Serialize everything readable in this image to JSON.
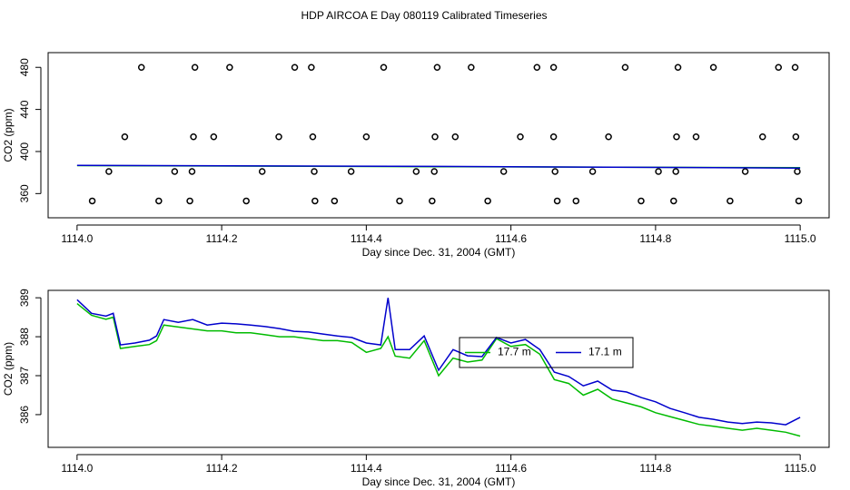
{
  "title": "HDP AIRCOA E  Day 080119  Calibrated Timeseries",
  "chart_data": [
    {
      "type": "scatter",
      "ylabel": "CO2 (ppm)",
      "xlabel": "Day since Dec. 31, 2004 (GMT)",
      "xlim": [
        1113.96,
        1115.04
      ],
      "ylim": [
        337,
        494
      ],
      "xticks": [
        {
          "value": 1114.0,
          "label": "1114.0"
        },
        {
          "value": 1114.2,
          "label": "1114.2"
        },
        {
          "value": 1114.4,
          "label": "1114.4"
        },
        {
          "value": 1114.6,
          "label": "1114.6"
        },
        {
          "value": 1114.8,
          "label": "1114.8"
        },
        {
          "value": 1115.0,
          "label": "1115.0"
        }
      ],
      "yticks": [
        360,
        400,
        440,
        480
      ],
      "series": [
        {
          "style": "points",
          "color": "#000000",
          "x": [
            1114.089,
            1114.163,
            1114.211,
            1114.301,
            1114.324,
            1114.424,
            1114.498,
            1114.545,
            1114.636,
            1114.659,
            1114.758,
            1114.831,
            1114.88,
            1114.97,
            1114.993,
            1114.066,
            1114.161,
            1114.189,
            1114.279,
            1114.326,
            1114.4,
            1114.495,
            1114.523,
            1114.613,
            1114.659,
            1114.735,
            1114.829,
            1114.856,
            1114.948,
            1114.994,
            1114.044,
            1114.135,
            1114.159,
            1114.256,
            1114.328,
            1114.379,
            1114.469,
            1114.494,
            1114.59,
            1114.661,
            1114.713,
            1114.804,
            1114.828,
            1114.924,
            1114.996,
            1114.021,
            1114.113,
            1114.156,
            1114.234,
            1114.329,
            1114.356,
            1114.446,
            1114.491,
            1114.568,
            1114.664,
            1114.69,
            1114.78,
            1114.825,
            1114.903,
            1114.998
          ],
          "values": [
            480,
            480,
            480,
            480,
            480,
            480,
            480,
            480,
            480,
            480,
            480,
            480,
            480,
            480,
            480,
            414,
            414,
            414,
            414,
            414,
            414,
            414,
            414,
            414,
            414,
            414,
            414,
            414,
            414,
            414,
            381,
            381,
            381,
            381,
            381,
            381,
            381,
            381,
            381,
            381,
            381,
            381,
            381,
            381,
            381,
            353,
            353,
            353,
            353,
            353,
            353,
            353,
            353,
            353,
            353,
            353,
            353,
            353,
            353,
            353
          ]
        },
        {
          "style": "line",
          "color": "#00bb00",
          "x": [
            1114.0,
            1114.5,
            1115.0
          ],
          "values": [
            386.6,
            385.6,
            384.6
          ]
        },
        {
          "style": "line",
          "color": "#0000cc",
          "x": [
            1114.0,
            1114.5,
            1115.0
          ],
          "values": [
            386.9,
            385.8,
            384.3
          ]
        }
      ]
    },
    {
      "type": "line",
      "ylabel": "CO2 (ppm)",
      "xlabel": "Day since Dec. 31, 2004 (GMT)",
      "xlim": [
        1113.96,
        1115.04
      ],
      "ylim": [
        385.16,
        389.19
      ],
      "xticks": [
        {
          "value": 1114.0,
          "label": "1114.0"
        },
        {
          "value": 1114.2,
          "label": "1114.2"
        },
        {
          "value": 1114.4,
          "label": "1114.4"
        },
        {
          "value": 1114.6,
          "label": "1114.6"
        },
        {
          "value": 1114.8,
          "label": "1114.8"
        },
        {
          "value": 1115.0,
          "label": "1115.0"
        }
      ],
      "yticks": [
        386,
        387,
        388,
        389
      ],
      "legend": "center",
      "series": [
        {
          "name": "17.7 m",
          "style": "line",
          "color": "#00bb00",
          "x": [
            1114.0,
            1114.02,
            1114.04,
            1114.05,
            1114.06,
            1114.08,
            1114.1,
            1114.11,
            1114.12,
            1114.14,
            1114.16,
            1114.18,
            1114.2,
            1114.22,
            1114.24,
            1114.26,
            1114.28,
            1114.3,
            1114.32,
            1114.34,
            1114.36,
            1114.38,
            1114.4,
            1114.42,
            1114.43,
            1114.44,
            1114.46,
            1114.48,
            1114.5,
            1114.52,
            1114.54,
            1114.56,
            1114.58,
            1114.6,
            1114.62,
            1114.64,
            1114.66,
            1114.68,
            1114.7,
            1114.72,
            1114.74,
            1114.76,
            1114.78,
            1114.8,
            1114.82,
            1114.84,
            1114.86,
            1114.88,
            1114.9,
            1114.92,
            1114.94,
            1114.96,
            1114.98,
            1115.0
          ],
          "values": [
            388.85,
            388.55,
            388.45,
            388.5,
            387.7,
            387.75,
            387.8,
            387.9,
            388.3,
            388.25,
            388.2,
            388.15,
            388.15,
            388.1,
            388.1,
            388.05,
            388.0,
            388.0,
            387.95,
            387.9,
            387.9,
            387.85,
            387.6,
            387.7,
            388.0,
            387.5,
            387.45,
            387.9,
            387.0,
            387.45,
            387.35,
            387.4,
            387.95,
            387.75,
            387.8,
            387.55,
            386.9,
            386.8,
            386.5,
            386.65,
            386.4,
            386.3,
            386.2,
            386.05,
            385.95,
            385.85,
            385.75,
            385.7,
            385.65,
            385.6,
            385.65,
            385.6,
            385.55,
            385.45
          ]
        },
        {
          "name": "17.1 m",
          "style": "line",
          "color": "#0000cc",
          "x": [
            1114.0,
            1114.02,
            1114.04,
            1114.05,
            1114.06,
            1114.08,
            1114.1,
            1114.11,
            1114.12,
            1114.14,
            1114.16,
            1114.18,
            1114.2,
            1114.22,
            1114.24,
            1114.26,
            1114.28,
            1114.3,
            1114.32,
            1114.34,
            1114.36,
            1114.38,
            1114.4,
            1114.42,
            1114.43,
            1114.44,
            1114.46,
            1114.48,
            1114.5,
            1114.52,
            1114.54,
            1114.56,
            1114.58,
            1114.6,
            1114.62,
            1114.64,
            1114.66,
            1114.68,
            1114.7,
            1114.72,
            1114.74,
            1114.76,
            1114.78,
            1114.8,
            1114.82,
            1114.84,
            1114.86,
            1114.88,
            1114.9,
            1114.92,
            1114.94,
            1114.96,
            1114.98,
            1115.0
          ],
          "values": [
            388.95,
            388.6,
            388.53,
            388.6,
            387.79,
            387.84,
            387.91,
            388.02,
            388.44,
            388.37,
            388.44,
            388.3,
            388.35,
            388.33,
            388.3,
            388.26,
            388.21,
            388.14,
            388.12,
            388.07,
            388.02,
            387.98,
            387.84,
            387.79,
            389.0,
            387.67,
            387.67,
            388.02,
            387.14,
            387.67,
            387.51,
            387.49,
            387.98,
            387.84,
            387.93,
            387.67,
            387.09,
            386.98,
            386.74,
            386.86,
            386.63,
            386.58,
            386.44,
            386.33,
            386.16,
            386.05,
            385.93,
            385.88,
            385.81,
            385.77,
            385.81,
            385.79,
            385.74,
            385.93
          ]
        }
      ]
    }
  ]
}
